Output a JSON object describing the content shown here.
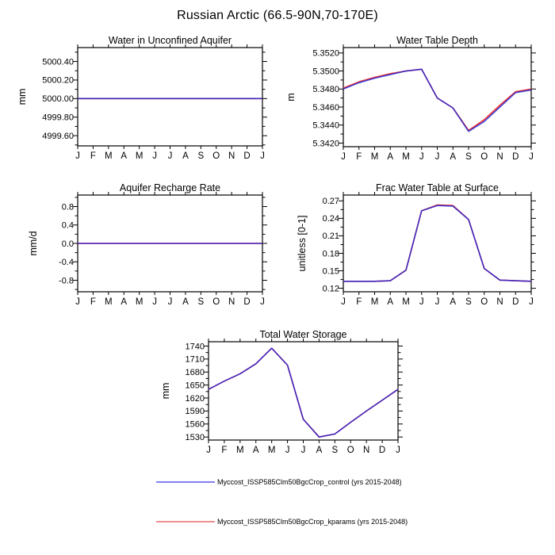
{
  "page_title": "Russian Arctic (66.5-90N,70-170E)",
  "legend": {
    "items": [
      {
        "label": "Myccost_ISSP585Clm50BgcCrop_control (yrs 2015-2048)",
        "color": "#8080f0"
      },
      {
        "label": "Myccost_ISSP585Clm50BgcCrop_kparams (yrs 2015-2048)",
        "color": "#f09090"
      }
    ]
  },
  "chart_data": [
    {
      "id": "water-in-unconfined-aquifer",
      "type": "line",
      "title": "Water in Unconfined Aquifer",
      "ylabel": "mm",
      "x_categories": [
        "J",
        "F",
        "M",
        "A",
        "M",
        "J",
        "J",
        "A",
        "S",
        "O",
        "N",
        "D",
        "J"
      ],
      "ylim": [
        4999.49,
        5000.55
      ],
      "ytick_values": [
        4999.6,
        4999.8,
        5000.0,
        5000.2,
        5000.4
      ],
      "ytick_labels": [
        "4999.60",
        "4999.80",
        "5000.00",
        "5000.20",
        "5000.40"
      ],
      "yminor_step": 0.1,
      "series": [
        {
          "name": "Myccost_ISSP585Clm50BgcCrop_control (yrs 2015-2048)",
          "color": "#2222d2",
          "values": [
            5000.0,
            5000.0,
            5000.0,
            5000.0,
            5000.0,
            5000.0,
            5000.0,
            5000.0,
            5000.0,
            5000.0,
            5000.0,
            5000.0,
            5000.0
          ]
        },
        {
          "name": "Myccost_ISSP585Clm50BgcCrop_kparams (yrs 2015-2048)",
          "color": "#ee3333",
          "values": [
            5000.0,
            5000.0,
            5000.0,
            5000.0,
            5000.0,
            5000.0,
            5000.0,
            5000.0,
            5000.0,
            5000.0,
            5000.0,
            5000.0,
            5000.0
          ]
        }
      ]
    },
    {
      "id": "water-table-depth",
      "type": "line",
      "title": "Water Table Depth",
      "ylabel": "m",
      "x_categories": [
        "J",
        "F",
        "M",
        "A",
        "M",
        "J",
        "J",
        "A",
        "S",
        "O",
        "N",
        "D",
        "J"
      ],
      "ylim": [
        5.3416,
        5.3526
      ],
      "ytick_values": [
        5.342,
        5.344,
        5.346,
        5.348,
        5.35,
        5.352
      ],
      "ytick_labels": [
        "5.3420",
        "5.3440",
        "5.3460",
        "5.3480",
        "5.3500",
        "5.3520"
      ],
      "yminor_step": 0.001,
      "series": [
        {
          "name": "Myccost_ISSP585Clm50BgcCrop_control (yrs 2015-2048)",
          "color": "#2222d2",
          "values": [
            5.348,
            5.3487,
            5.3492,
            5.3496,
            5.35,
            5.3502,
            5.347,
            5.3459,
            5.3433,
            5.3444,
            5.346,
            5.3476,
            5.3479
          ]
        },
        {
          "name": "Myccost_ISSP585Clm50BgcCrop_kparams (yrs 2015-2048)",
          "color": "#ee3333",
          "values": [
            5.3481,
            5.3488,
            5.3493,
            5.3497,
            5.35,
            5.3502,
            5.347,
            5.3459,
            5.3434,
            5.3446,
            5.3462,
            5.3477,
            5.348
          ]
        }
      ]
    },
    {
      "id": "aquifer-recharge-rate",
      "type": "line",
      "title": "Aquifer Recharge Rate",
      "ylabel": "mm/d",
      "x_categories": [
        "J",
        "F",
        "M",
        "A",
        "M",
        "J",
        "J",
        "A",
        "S",
        "O",
        "N",
        "D",
        "J"
      ],
      "ylim": [
        -1.05,
        1.05
      ],
      "ytick_values": [
        -0.8,
        -0.4,
        0.0,
        0.4,
        0.8
      ],
      "ytick_labels": [
        "-0.8",
        "-0.4",
        "0.0",
        "0.4",
        "0.8"
      ],
      "yminor_step": 0.2,
      "series": [
        {
          "name": "Myccost_ISSP585Clm50BgcCrop_control (yrs 2015-2048)",
          "color": "#2222d2",
          "values": [
            0.0,
            0.0,
            0.0,
            0.0,
            0.0,
            0.0,
            0.0,
            0.0,
            0.0,
            0.0,
            0.0,
            0.0,
            0.0
          ]
        },
        {
          "name": "Myccost_ISSP585Clm50BgcCrop_kparams (yrs 2015-2048)",
          "color": "#ee3333",
          "values": [
            0.0,
            0.0,
            0.0,
            0.0,
            0.0,
            0.0,
            0.0,
            0.0,
            0.0,
            0.0,
            0.0,
            0.0,
            0.0
          ]
        }
      ]
    },
    {
      "id": "frac-water-table-at-surface",
      "type": "line",
      "title": "Frac Water Table at Surface",
      "ylabel": "unitless [0-1]",
      "x_categories": [
        "J",
        "F",
        "M",
        "A",
        "M",
        "J",
        "J",
        "A",
        "S",
        "O",
        "N",
        "D",
        "J"
      ],
      "ylim": [
        0.114,
        0.28
      ],
      "ytick_values": [
        0.12,
        0.15,
        0.18,
        0.21,
        0.24,
        0.27
      ],
      "ytick_labels": [
        "0.12",
        "0.15",
        "0.18",
        "0.21",
        "0.24",
        "0.27"
      ],
      "yminor_step": 0.015,
      "series": [
        {
          "name": "Myccost_ISSP585Clm50BgcCrop_control (yrs 2015-2048)",
          "color": "#2222d2",
          "values": [
            0.132,
            0.132,
            0.132,
            0.133,
            0.151,
            0.253,
            0.262,
            0.261,
            0.238,
            0.154,
            0.134,
            0.133,
            0.132
          ]
        },
        {
          "name": "Myccost_ISSP585Clm50BgcCrop_kparams (yrs 2015-2048)",
          "color": "#ee3333",
          "values": [
            0.132,
            0.132,
            0.132,
            0.133,
            0.151,
            0.253,
            0.263,
            0.262,
            0.238,
            0.154,
            0.134,
            0.133,
            0.132
          ]
        }
      ]
    },
    {
      "id": "total-water-storage",
      "type": "line",
      "title": "Total Water Storage",
      "ylabel": "mm",
      "x_categories": [
        "J",
        "F",
        "M",
        "A",
        "M",
        "J",
        "J",
        "A",
        "S",
        "O",
        "N",
        "D",
        "J"
      ],
      "ylim": [
        1523,
        1750
      ],
      "ytick_values": [
        1530,
        1560,
        1590,
        1620,
        1650,
        1680,
        1710,
        1740
      ],
      "ytick_labels": [
        "1530",
        "1560",
        "1590",
        "1620",
        "1650",
        "1680",
        "1710",
        "1740"
      ],
      "yminor_step": 15,
      "series": [
        {
          "name": "Myccost_ISSP585Clm50BgcCrop_control (yrs 2015-2048)",
          "color": "#2222d2",
          "values": [
            1640,
            1659,
            1676,
            1699,
            1735,
            1696,
            1571,
            1530,
            1537,
            1564,
            1590,
            1615,
            1640
          ]
        },
        {
          "name": "Myccost_ISSP585Clm50BgcCrop_kparams (yrs 2015-2048)",
          "color": "#ee3333",
          "values": [
            1640,
            1659,
            1676,
            1699,
            1735,
            1696,
            1571,
            1530,
            1537,
            1564,
            1590,
            1615,
            1640
          ]
        }
      ]
    }
  ]
}
